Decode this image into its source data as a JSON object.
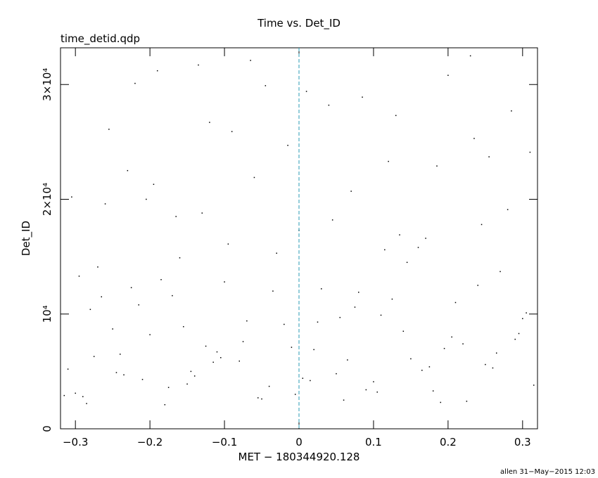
{
  "chart_data": {
    "type": "scatter",
    "title": "Time vs. Det_ID",
    "subtitle": "time_detid.qdp",
    "x_label": "MET − 180344920.128",
    "y_label": "Det_ID",
    "footer": "allen 31−May−2015 12:03",
    "xlim": [
      -0.32,
      0.32
    ],
    "ylim": [
      0,
      33200
    ],
    "xticks": [
      {
        "value": -0.3,
        "label": "−0.3"
      },
      {
        "value": -0.2,
        "label": "−0.2"
      },
      {
        "value": -0.1,
        "label": "−0.1"
      },
      0,
      0.1,
      0.2,
      0.3
    ],
    "yticks": [
      0,
      {
        "value": 10000,
        "label": "10⁴"
      },
      {
        "value": 20000,
        "label": "2×10⁴"
      },
      {
        "value": 30000,
        "label": "3×10⁴"
      }
    ],
    "reference_line_x": 0,
    "reference_line_color": "#2a9bb5",
    "color": "#000000",
    "x": [
      -0.31,
      -0.29,
      -0.27,
      -0.25,
      -0.23,
      -0.21,
      -0.19,
      -0.17,
      -0.15,
      -0.13,
      -0.11,
      -0.09,
      -0.07,
      -0.05,
      -0.03,
      -0.01,
      0.01,
      0.03,
      0.05,
      0.07,
      0.09,
      0.11,
      0.13,
      0.15,
      0.17,
      0.19,
      0.21,
      0.23,
      0.25,
      0.27,
      0.29,
      0.31,
      -0.3,
      -0.28,
      -0.26,
      -0.24,
      -0.22,
      -0.2,
      -0.18,
      -0.16,
      -0.14,
      -0.12,
      -0.1,
      -0.08,
      -0.06,
      -0.04,
      -0.02,
      0.0,
      0.02,
      0.04,
      0.06,
      0.08,
      0.1,
      0.12,
      0.14,
      0.16,
      0.18,
      0.2,
      0.22,
      0.24,
      0.26,
      0.28,
      0.3,
      -0.315,
      -0.295,
      -0.275,
      -0.255,
      -0.235,
      -0.215,
      -0.195,
      -0.175,
      -0.155,
      -0.135,
      -0.115,
      -0.095,
      -0.075,
      -0.055,
      -0.035,
      -0.015,
      0.005,
      0.025,
      0.045,
      0.065,
      0.085,
      0.105,
      0.125,
      0.145,
      0.165,
      0.185,
      0.205,
      0.225,
      0.245,
      0.265,
      0.285,
      0.305,
      -0.305,
      -0.245,
      -0.185,
      -0.125,
      -0.065,
      -0.005,
      0.055,
      0.115,
      0.175,
      0.235,
      0.295,
      -0.285,
      -0.225,
      -0.165,
      -0.105,
      -0.045,
      0.015,
      0.075,
      0.135,
      0.195,
      0.255,
      0.315,
      -0.265,
      -0.205,
      -0.145
    ],
    "values": [
      5200,
      2800,
      14100,
      8700,
      22500,
      4300,
      31200,
      11600,
      3900,
      18800,
      6700,
      25900,
      9400,
      2600,
      15300,
      7100,
      29400,
      12200,
      4800,
      20700,
      3400,
      9900,
      27300,
      6100,
      16600,
      2300,
      11000,
      32500,
      5600,
      13700,
      7800,
      24100,
      3100,
      10400,
      19600,
      6500,
      30100,
      8200,
      2100,
      14900,
      4600,
      26700,
      12800,
      5900,
      21900,
      3700,
      9100,
      17300,
      6900,
      28200,
      2500,
      11900,
      4100,
      23300,
      8500,
      15800,
      3300,
      30800,
      7400,
      12500,
      5300,
      19100,
      9600,
      2900,
      13300,
      6300,
      26100,
      4700,
      10800,
      21300,
      3600,
      8900,
      31700,
      5800,
      16100,
      7600,
      2700,
      12000,
      24700,
      4400,
      9300,
      18200,
      6000,
      28900,
      3200,
      11300,
      14500,
      5100,
      22900,
      8000,
      2400,
      17800,
      6600,
      27700,
      10100,
      20200,
      4900,
      13000,
      7200,
      32100,
      3000,
      9700,
      15600,
      5400,
      25300,
      8300,
      2200,
      12300,
      18500,
      6200,
      29900,
      4200,
      10600,
      16900,
      7000,
      23700,
      3800,
      11500,
      20000,
      5000
    ]
  }
}
